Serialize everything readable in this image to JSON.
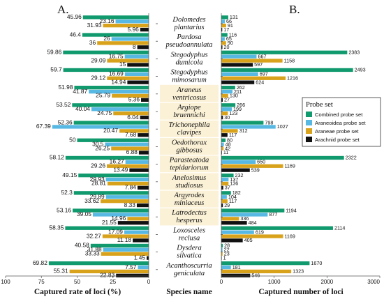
{
  "panels": {
    "left_letter": "A.",
    "right_letter": "B.",
    "left_xlabel": "Captured rate of loci (%)",
    "middle_label": "Species name",
    "right_xlabel": "Captured number of loci"
  },
  "chart_data": [
    {
      "type": "bar",
      "orientation": "horizontal",
      "xlabel": "Captured rate of loci (%)",
      "xlim": [
        100,
        0
      ],
      "xticks": [
        "100",
        "75",
        "50",
        "25",
        "0"
      ],
      "categories": [
        [
          "Dolomedes",
          "plantarius"
        ],
        [
          "Pardosa",
          "pseudoannulata"
        ],
        [
          "Stegodyphus",
          "dumicola"
        ],
        [
          "Stegodyphus",
          "mimosarum"
        ],
        [
          "Araneus",
          "ventricosus"
        ],
        [
          "Argiope",
          "bruennichi"
        ],
        [
          "Trichonephila",
          "clavipes"
        ],
        [
          "Oedothorax",
          "gibbosus"
        ],
        [
          "Parasteatoda",
          "tepidariorum"
        ],
        [
          "Anelosimus",
          "studiosus"
        ],
        [
          "Argyrodes",
          "miniaceus"
        ],
        [
          "Latrodectus",
          "hesperus"
        ],
        [
          "Loxosceles",
          "reclusa"
        ],
        [
          "Dysdera",
          "silvatica"
        ],
        [
          "Acanthoscurria",
          "geniculata"
        ]
      ],
      "series": [
        {
          "name": "Combined probe set",
          "color": "#109a6e",
          "values": [
            "45.96",
            "46.4",
            "59.86",
            "59.7",
            "51.98",
            "53.52",
            "52.36",
            "50",
            "58.12",
            "49.15",
            "52.3",
            "53.16",
            "58.35",
            "40.58",
            "69.82"
          ]
        },
        {
          "name": "Araneoidea probe set",
          "color": "#56b8e3",
          "values": [
            "23.16",
            "26",
            "16.75",
            "16.69",
            "41.87",
            "40.04",
            "67.39",
            "30.5",
            "16.27",
            "29.93",
            "29.89",
            "39.05",
            "17.09",
            "31.88",
            "7.57"
          ]
        },
        {
          "name": "Araneae probe set",
          "color": "#d9a21b",
          "values": [
            "31.93",
            "36",
            "29.09",
            "29.12",
            "25.79",
            "24.75",
            "20.47",
            "26.25",
            "29.26",
            "28.81",
            "33.62",
            "14.96",
            "32.27",
            "33.33",
            "55.31"
          ]
        },
        {
          "name": "Arachnid probe set",
          "color": "#111111",
          "values": [
            "5.96",
            "8",
            "15",
            "14.94",
            "5.36",
            "6.04",
            "7.68",
            "6.88",
            "13.49",
            "7.84",
            "8.33",
            "21.55",
            "11.18",
            "1.45",
            "22.83"
          ]
        }
      ]
    },
    {
      "type": "bar",
      "orientation": "horizontal",
      "xlabel": "Captured number of loci",
      "xlim": [
        0,
        3000
      ],
      "xticks": [
        "0",
        "1000",
        "2000",
        "3000"
      ],
      "legend_title": "Probe set",
      "legend_position": "right",
      "series": [
        {
          "name": "Combined probe set",
          "color": "#109a6e",
          "values": [
            "131",
            "116",
            "2383",
            "2493",
            "262",
            "266",
            "798",
            "80",
            "2322",
            "232",
            "182",
            "1194",
            "2114",
            "28",
            "1670"
          ]
        },
        {
          "name": "Araneoidea probe set",
          "color": "#56b8e3",
          "values": [
            "66",
            "65",
            "667",
            "697",
            "211",
            "199",
            "1027",
            "48",
            "650",
            "137",
            "104",
            "877",
            "619",
            "22",
            "181"
          ]
        },
        {
          "name": "Araneae probe set",
          "color": "#d9a21b",
          "values": [
            "91",
            "90",
            "1158",
            "1216",
            "130",
            "123",
            "312",
            "42",
            "1169",
            "136",
            "117",
            "336",
            "1169",
            "23",
            "1323"
          ]
        },
        {
          "name": "Arachnid probe set",
          "color": "#111111",
          "values": [
            "17",
            "20",
            "597",
            "624",
            "27",
            "30",
            "117",
            "11",
            "539",
            "37",
            "29",
            "484",
            "405",
            "1",
            "546"
          ]
        }
      ]
    }
  ]
}
